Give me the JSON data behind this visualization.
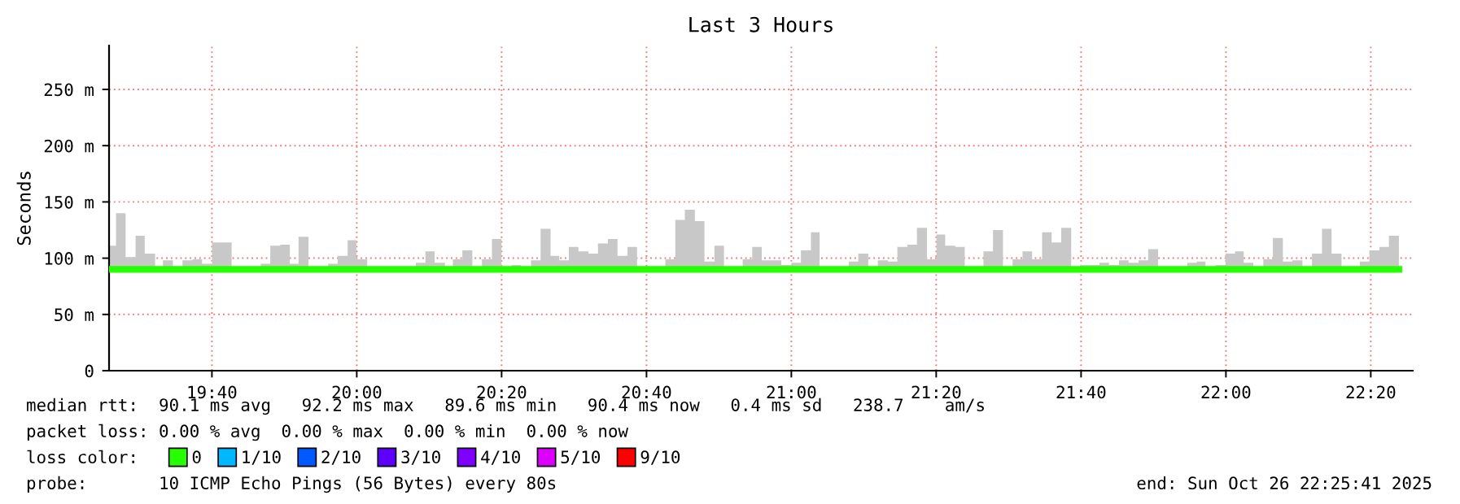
{
  "chart_data": {
    "type": "step",
    "title": "Last 3 Hours",
    "ylabel": "Seconds",
    "x": [
      19.43,
      19.446,
      19.468,
      19.491,
      19.512,
      19.536,
      19.554,
      19.577,
      19.599,
      19.622,
      19.644,
      19.667,
      19.712,
      19.779,
      19.801,
      19.824,
      19.846,
      19.866,
      19.889,
      19.934,
      19.956,
      19.979,
      19.999,
      20.024,
      20.068,
      20.136,
      20.158,
      20.179,
      20.203,
      20.221,
      20.243,
      20.266,
      20.288,
      20.311,
      20.333,
      20.356,
      20.378,
      20.401,
      20.423,
      20.446,
      20.466,
      20.488,
      20.51,
      20.533,
      20.555,
      20.578,
      20.6,
      20.623,
      20.645,
      20.688,
      20.71,
      20.733,
      20.755,
      20.778,
      20.8,
      20.823,
      20.845,
      20.888,
      20.91,
      20.932,
      20.977,
      21.0,
      21.022,
      21.045,
      21.065,
      21.087,
      21.132,
      21.154,
      21.177,
      21.199,
      21.222,
      21.244,
      21.267,
      21.289,
      21.312,
      21.334,
      21.354,
      21.377,
      21.399,
      21.419,
      21.442,
      21.464,
      21.487,
      21.509,
      21.532,
      21.554,
      21.577,
      21.599,
      21.621,
      21.644,
      21.664,
      21.709,
      21.731,
      21.754,
      21.776,
      21.799,
      21.821,
      21.844,
      21.911,
      21.933,
      21.953,
      21.976,
      21.999,
      22.021,
      22.041,
      22.063,
      22.086,
      22.108,
      22.131,
      22.153,
      22.176,
      22.198,
      22.221,
      22.243,
      22.266,
      22.288,
      22.308,
      22.33,
      22.353,
      22.375,
      22.398
    ],
    "series": [
      {
        "name": "0",
        "color": "#26ff00",
        "values": [
          90,
          90,
          90,
          90,
          90,
          90,
          90,
          90,
          90,
          90,
          90,
          90,
          90,
          90,
          90,
          90,
          90,
          90,
          90,
          90,
          90,
          90,
          90,
          90,
          90,
          90,
          90,
          90,
          90,
          90,
          90,
          90,
          90,
          90,
          90,
          90,
          90,
          90,
          90,
          90,
          90,
          90,
          90,
          90,
          90,
          90,
          90,
          90,
          90,
          90,
          90,
          90,
          90,
          90,
          90,
          90,
          90,
          90,
          90,
          90,
          90,
          90,
          90,
          90,
          90,
          90,
          90,
          90,
          90,
          90,
          90,
          90,
          90,
          90,
          90,
          90,
          90,
          90,
          90,
          90,
          90,
          90,
          90,
          90,
          90,
          90,
          90,
          90,
          90,
          90,
          90,
          90,
          90,
          90,
          90,
          90,
          90,
          90,
          90,
          90,
          90,
          90,
          90,
          90,
          90,
          90,
          90,
          90,
          90,
          90,
          90,
          90,
          90,
          90,
          90,
          90,
          90,
          90,
          90,
          90,
          90
        ],
        "lower": [
          88,
          88,
          88,
          88,
          88,
          88,
          88,
          88,
          88,
          88,
          88,
          88,
          88,
          88,
          88,
          88,
          88,
          88,
          88,
          88,
          88,
          88,
          88,
          88,
          88,
          88,
          88,
          88,
          88,
          88,
          88,
          88,
          88,
          88,
          88,
          88,
          88,
          88,
          88,
          88,
          88,
          88,
          88,
          88,
          88,
          88,
          88,
          88,
          88,
          88,
          88,
          88,
          88,
          88,
          88,
          88,
          88,
          88,
          88,
          88,
          88,
          88,
          88,
          88,
          88,
          88,
          88,
          88,
          88,
          88,
          88,
          88,
          88,
          88,
          88,
          88,
          88,
          88,
          88,
          88,
          88,
          88,
          88,
          88,
          88,
          88,
          88,
          88,
          88,
          88,
          88,
          88,
          88,
          88,
          88,
          88,
          88,
          88,
          88,
          88,
          88,
          88,
          88,
          88,
          88,
          88,
          88,
          88,
          88,
          88,
          88,
          88,
          88,
          88,
          88,
          88,
          88,
          88,
          88,
          88,
          88
        ],
        "upper": [
          111,
          140,
          101,
          120,
          104,
          92,
          98,
          92,
          98,
          99,
          95,
          114,
          91,
          95,
          111,
          112,
          95,
          119,
          91,
          95,
          102,
          116,
          99,
          92,
          91,
          96,
          106,
          96,
          92,
          99,
          107,
          92,
          99,
          117,
          91,
          94,
          92,
          98,
          126,
          102,
          98,
          110,
          106,
          104,
          113,
          117,
          102,
          110,
          91,
          92,
          99,
          134,
          143,
          133,
          97,
          111,
          91,
          99,
          110,
          98,
          94,
          96,
          107,
          123,
          91,
          92,
          97,
          104,
          92,
          98,
          97,
          110,
          112,
          127,
          99,
          121,
          111,
          110,
          92,
          92,
          106,
          125,
          91,
          99,
          106,
          99,
          123,
          114,
          127,
          91,
          94,
          96,
          94,
          98,
          96,
          98,
          108,
          91,
          96,
          97,
          91,
          94,
          104,
          106,
          96,
          91,
          99,
          118,
          97,
          98,
          91,
          104,
          126,
          104,
          92,
          91,
          97,
          107,
          110,
          120,
          120
        ]
      },
      {
        "name": "1/10",
        "color": "#00b8ff",
        "values": [
          null,
          null,
          null,
          null,
          null,
          null,
          null,
          null,
          null,
          null,
          null,
          null,
          null,
          null,
          null,
          null,
          null,
          null,
          null,
          null,
          null,
          null,
          null,
          null,
          null,
          null,
          null,
          null,
          null,
          null,
          null,
          null,
          null,
          null,
          null,
          null,
          null,
          null,
          null,
          null,
          null,
          null,
          null,
          null,
          null,
          null,
          null,
          null,
          null,
          null,
          null,
          null,
          null,
          null,
          null,
          null,
          null,
          null,
          null,
          null,
          null,
          null,
          null,
          null,
          null,
          null,
          null,
          null,
          null,
          null,
          null,
          null,
          null,
          null,
          null,
          null,
          null,
          null,
          null,
          null,
          null,
          null,
          null,
          null,
          null,
          null,
          null,
          null,
          null,
          null,
          null,
          null,
          null,
          null,
          null,
          null,
          null,
          null,
          null,
          null,
          null,
          null,
          null,
          null,
          null,
          null,
          null,
          null,
          null,
          null,
          null,
          null,
          null,
          null,
          null,
          null,
          null,
          null,
          null,
          null,
          null
        ]
      },
      {
        "name": "2/10",
        "color": "#0059ff",
        "values": [
          null,
          null,
          null,
          null,
          null,
          null,
          null,
          null,
          null,
          null,
          null,
          null,
          null,
          null,
          null,
          null,
          null,
          null,
          null,
          null,
          null,
          null,
          null,
          null,
          null,
          null,
          null,
          null,
          null,
          null,
          null,
          null,
          null,
          null,
          null,
          null,
          null,
          null,
          null,
          null,
          null,
          null,
          null,
          null,
          null,
          null,
          null,
          null,
          null,
          null,
          null,
          null,
          null,
          null,
          null,
          null,
          null,
          null,
          null,
          null,
          null,
          null,
          null,
          null,
          null,
          null,
          null,
          null,
          null,
          null,
          null,
          null,
          null,
          null,
          null,
          null,
          null,
          null,
          null,
          null,
          null,
          null,
          null,
          null,
          null,
          null,
          null,
          null,
          null,
          null,
          null,
          null,
          null,
          null,
          null,
          null,
          null,
          null,
          null,
          null,
          null,
          null,
          null,
          null,
          null,
          null,
          null,
          null,
          null,
          null,
          null,
          null,
          null,
          null,
          null,
          null,
          null,
          null,
          null,
          null,
          null
        ]
      },
      {
        "name": "3/10",
        "color": "#5e00ff",
        "values": [
          null,
          null,
          null,
          null,
          null,
          null,
          null,
          null,
          null,
          null,
          null,
          null,
          null,
          null,
          null,
          null,
          null,
          null,
          null,
          null,
          null,
          null,
          null,
          null,
          null,
          null,
          null,
          null,
          null,
          null,
          null,
          null,
          null,
          null,
          null,
          null,
          null,
          null,
          null,
          null,
          null,
          null,
          null,
          null,
          null,
          null,
          null,
          null,
          null,
          null,
          null,
          null,
          null,
          null,
          null,
          null,
          null,
          null,
          null,
          null,
          null,
          null,
          null,
          null,
          null,
          null,
          null,
          null,
          null,
          null,
          null,
          null,
          null,
          null,
          null,
          null,
          null,
          null,
          null,
          null,
          null,
          null,
          null,
          null,
          null,
          null,
          null,
          null,
          null,
          null,
          null,
          null,
          null,
          null,
          null,
          null,
          null,
          null,
          null,
          null,
          null,
          null,
          null,
          null,
          null,
          null,
          null,
          null,
          null,
          null,
          null,
          null,
          null,
          null,
          null,
          null,
          null,
          null,
          null,
          null,
          null
        ]
      },
      {
        "name": "4/10",
        "color": "#7e00ff",
        "values": [
          null,
          null,
          null,
          null,
          null,
          null,
          null,
          null,
          null,
          null,
          null,
          null,
          null,
          null,
          null,
          null,
          null,
          null,
          null,
          null,
          null,
          null,
          null,
          null,
          null,
          null,
          null,
          null,
          null,
          null,
          null,
          null,
          null,
          null,
          null,
          null,
          null,
          null,
          null,
          null,
          null,
          null,
          null,
          null,
          null,
          null,
          null,
          null,
          null,
          null,
          null,
          null,
          null,
          null,
          null,
          null,
          null,
          null,
          null,
          null,
          null,
          null,
          null,
          null,
          null,
          null,
          null,
          null,
          null,
          null,
          null,
          null,
          null,
          null,
          null,
          null,
          null,
          null,
          null,
          null,
          null,
          null,
          null,
          null,
          null,
          null,
          null,
          null,
          null,
          null,
          null,
          null,
          null,
          null,
          null,
          null,
          null,
          null,
          null,
          null,
          null,
          null,
          null,
          null,
          null,
          null,
          null,
          null,
          null,
          null,
          null,
          null,
          null,
          null,
          null,
          null,
          null,
          null,
          null,
          null,
          null
        ]
      },
      {
        "name": "5/10",
        "color": "#dd00ff",
        "values": [
          null,
          null,
          null,
          null,
          null,
          null,
          null,
          null,
          null,
          null,
          null,
          null,
          null,
          null,
          null,
          null,
          null,
          null,
          null,
          null,
          null,
          null,
          null,
          null,
          null,
          null,
          null,
          null,
          null,
          null,
          null,
          null,
          null,
          null,
          null,
          null,
          null,
          null,
          null,
          null,
          null,
          null,
          null,
          null,
          null,
          null,
          null,
          null,
          null,
          null,
          null,
          null,
          null,
          null,
          null,
          null,
          null,
          null,
          null,
          null,
          null,
          null,
          null,
          null,
          null,
          null,
          null,
          null,
          null,
          null,
          null,
          null,
          null,
          null,
          null,
          null,
          null,
          null,
          null,
          null,
          null,
          null,
          null,
          null,
          null,
          null,
          null,
          null,
          null,
          null,
          null,
          null,
          null,
          null,
          null,
          null,
          null,
          null,
          null,
          null,
          null,
          null,
          null,
          null,
          null,
          null,
          null,
          null,
          null,
          null,
          null,
          null,
          null,
          null,
          null,
          null,
          null,
          null,
          null,
          null,
          null
        ]
      },
      {
        "name": "9/10",
        "color": "#ff0000",
        "values": [
          null,
          null,
          null,
          null,
          null,
          null,
          null,
          null,
          null,
          null,
          null,
          null,
          null,
          null,
          null,
          null,
          null,
          null,
          null,
          null,
          null,
          null,
          null,
          null,
          null,
          null,
          null,
          null,
          null,
          null,
          null,
          null,
          null,
          null,
          null,
          null,
          null,
          null,
          null,
          null,
          null,
          null,
          null,
          null,
          null,
          null,
          null,
          null,
          null,
          null,
          null,
          null,
          null,
          null,
          null,
          null,
          null,
          null,
          null,
          null,
          null,
          null,
          null,
          null,
          null,
          null,
          null,
          null,
          null,
          null,
          null,
          null,
          null,
          null,
          null,
          null,
          null,
          null,
          null,
          null,
          null,
          null,
          null,
          null,
          null,
          null,
          null,
          null,
          null,
          null,
          null,
          null,
          null,
          null,
          null,
          null,
          null,
          null,
          null,
          null,
          null,
          null,
          null,
          null,
          null,
          null,
          null,
          null,
          null,
          null,
          null,
          null,
          null,
          null,
          null,
          null,
          null,
          null,
          null,
          null,
          null
        ]
      }
    ],
    "xlim": [
      19.43,
      22.43
    ],
    "xticks": [
      {
        "value": 19.6667,
        "label": "19:40"
      },
      {
        "value": 20.0,
        "label": "20:00"
      },
      {
        "value": 20.3333,
        "label": "20:20"
      },
      {
        "value": 20.6667,
        "label": "20:40"
      },
      {
        "value": 21.0,
        "label": "21:00"
      },
      {
        "value": 21.3333,
        "label": "21:20"
      },
      {
        "value": 21.6667,
        "label": "21:40"
      },
      {
        "value": 22.0,
        "label": "22:00"
      },
      {
        "value": 22.3333,
        "label": "22:20"
      }
    ],
    "ylim": [
      0,
      289
    ],
    "yticks": [
      0,
      {
        "value": 50,
        "label": "50 m"
      },
      {
        "value": 100,
        "label": "100 m"
      },
      {
        "value": 150,
        "label": "150 m"
      },
      {
        "value": 200,
        "label": "200 m"
      },
      {
        "value": 250,
        "label": "250 m"
      }
    ],
    "grid": true,
    "legend": "bottom left",
    "annotations": [
      "median rtt:  90.1 ms avg   92.2 ms max   89.6 ms min   90.4 ms now   0.4 ms sd   238.7    am/s",
      "packet loss: 0.00 % avg  0.00 % max  0.00 % min  0.00 % now",
      "loss color:",
      "probe:       10 ICMP Echo Pings (56 Bytes) every 80s",
      "end: Sun Oct 26 22:25:41 2025"
    ]
  }
}
